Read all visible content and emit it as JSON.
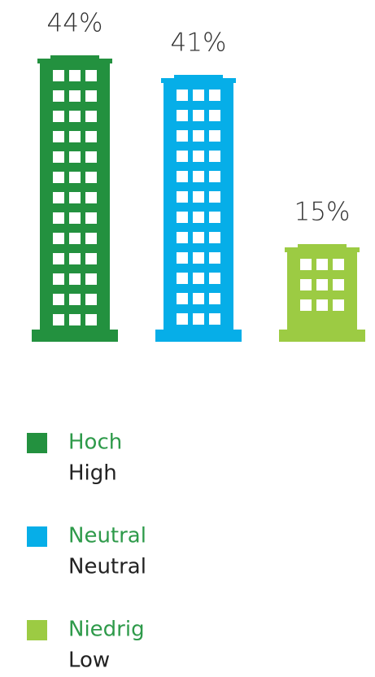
{
  "chart_data": {
    "type": "pictogram-bar",
    "categories": [
      "Hoch",
      "Neutral",
      "Niedrig"
    ],
    "category_translations": [
      "High",
      "Neutral",
      "Low"
    ],
    "values": [
      44,
      41,
      15
    ],
    "value_labels": [
      "44%",
      "41%",
      "15%"
    ],
    "colors": [
      "#23913f",
      "#06aee8",
      "#9ccb43"
    ]
  }
}
